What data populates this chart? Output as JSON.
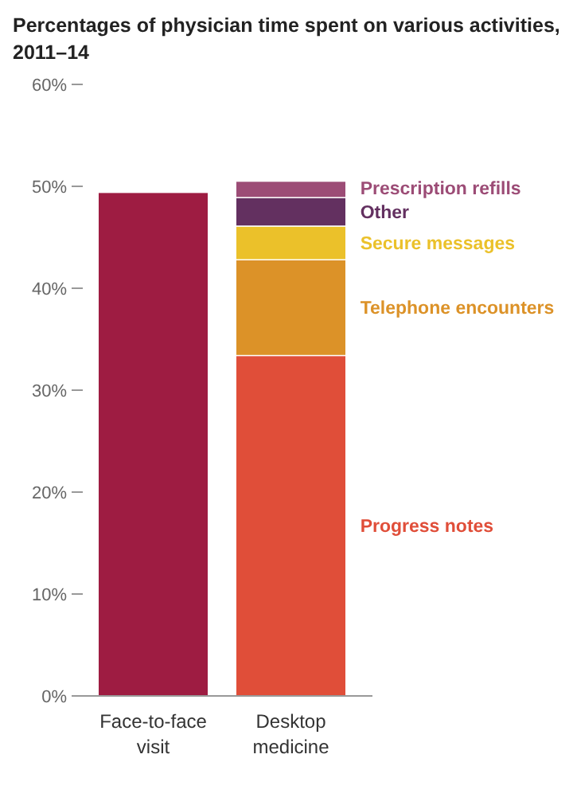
{
  "chart_data": {
    "type": "bar",
    "title": "Percentages of physician time spent on various activities, 2011–14",
    "categories": [
      "Face-to-face visit",
      "Desktop medicine"
    ],
    "stacked": true,
    "series": [
      {
        "color": "#9e1c42",
        "values": [
          49.4,
          null
        ]
      },
      {
        "name": "Progress notes",
        "color": "#e04e39",
        "values": [
          null,
          33.4
        ]
      },
      {
        "name": "Telephone encounters",
        "color": "#dc9228",
        "values": [
          null,
          9.4
        ]
      },
      {
        "name": "Secure messages",
        "color": "#ebc12a",
        "values": [
          null,
          3.3
        ]
      },
      {
        "name": "Other",
        "color": "#633060",
        "values": [
          null,
          2.8
        ]
      },
      {
        "name": "Prescription refills",
        "color": "#9c4c76",
        "values": [
          null,
          1.6
        ]
      }
    ],
    "ylim": [
      0,
      60
    ],
    "yticks": [
      {
        "value": 0,
        "label": "0%"
      },
      {
        "value": 10,
        "label": "10%"
      },
      {
        "value": 20,
        "label": "20%"
      },
      {
        "value": 30,
        "label": "30%"
      },
      {
        "value": 40,
        "label": "40%"
      },
      {
        "value": 50,
        "label": "50%"
      },
      {
        "value": 60,
        "label": "60%"
      }
    ],
    "grid": false
  }
}
